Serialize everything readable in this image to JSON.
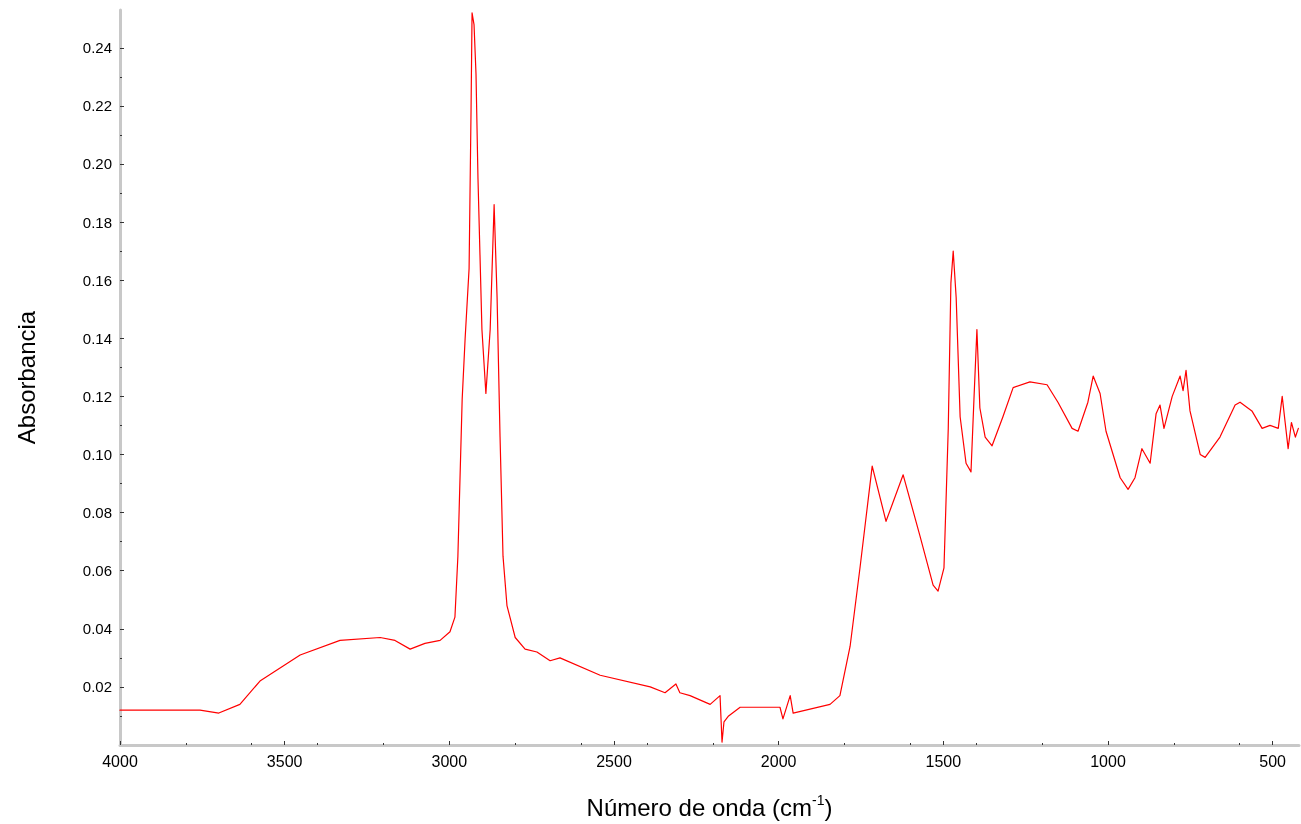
{
  "chart_data": {
    "type": "line",
    "xlabel": "Número de onda (cm$^{-1}$)",
    "ylabel": "Absorbancia",
    "xlim": [
      4000,
      420
    ],
    "xticks": [
      4000,
      3500,
      3000,
      2500,
      2000,
      1500,
      1000,
      500
    ],
    "ylim": [
      0,
      0.253
    ],
    "yticks": [
      0.02,
      0.04,
      0.06,
      0.08,
      {
        "value": 0.1,
        "label": "0.10"
      },
      0.12,
      0.14,
      0.16,
      0.18,
      {
        "value": 0.2,
        "label": "0.20"
      },
      0.22,
      0.24
    ],
    "grid": false,
    "marker": "none",
    "line_style": "solid",
    "series": [
      {
        "color": "#ff0000",
        "x": [
          4000,
          3757,
          3700,
          3636,
          3575,
          3453,
          3332,
          3210,
          3165,
          3119,
          3074,
          3028,
          2998,
          2983,
          2974,
          2961,
          2952,
          2940,
          2934,
          2931,
          2925,
          2919,
          2913,
          2901,
          2889,
          2876,
          2864,
          2855,
          2846,
          2837,
          2825,
          2800,
          2770,
          2734,
          2694,
          2664,
          2542,
          2390,
          2345,
          2312,
          2300,
          2269,
          2208,
          2178,
          2172,
          2166,
          2152,
          2117,
          1996,
          1987,
          1965,
          1956,
          1844,
          1814,
          1783,
          1753,
          1716,
          1674,
          1622,
          1571,
          1531,
          1516,
          1498,
          1485,
          1477,
          1470,
          1461,
          1449,
          1431,
          1416,
          1407,
          1398,
          1389,
          1373,
          1352,
          1319,
          1288,
          1237,
          1185,
          1152,
          1109,
          1091,
          1061,
          1045,
          1024,
          1006,
          963,
          939,
          918,
          897,
          872,
          854,
          842,
          830,
          805,
          781,
          772,
          763,
          751,
          720,
          705,
          660,
          614,
          599,
          563,
          532,
          508,
          483,
          471,
          462,
          453,
          443,
          431,
          422
        ],
        "values": [
          0.012,
          0.012,
          0.011,
          0.014,
          0.022,
          0.031,
          0.036,
          0.037,
          0.036,
          0.033,
          0.035,
          0.036,
          0.039,
          0.044,
          0.065,
          0.119,
          0.14,
          0.164,
          0.219,
          0.252,
          0.248,
          0.231,
          0.195,
          0.143,
          0.121,
          0.143,
          0.186,
          0.154,
          0.106,
          0.065,
          0.048,
          0.037,
          0.033,
          0.032,
          0.029,
          0.03,
          0.024,
          0.02,
          0.018,
          0.021,
          0.018,
          0.017,
          0.014,
          0.017,
          0.001,
          0.008,
          0.01,
          0.013,
          0.013,
          0.009,
          0.017,
          0.011,
          0.014,
          0.017,
          0.034,
          0.061,
          0.096,
          0.077,
          0.093,
          0.072,
          0.055,
          0.053,
          0.061,
          0.109,
          0.159,
          0.17,
          0.154,
          0.113,
          0.097,
          0.094,
          0.119,
          0.143,
          0.116,
          0.106,
          0.103,
          0.113,
          0.123,
          0.125,
          0.124,
          0.118,
          0.109,
          0.108,
          0.118,
          0.127,
          0.121,
          0.108,
          0.092,
          0.088,
          0.092,
          0.102,
          0.097,
          0.114,
          0.117,
          0.109,
          0.12,
          0.127,
          0.122,
          0.129,
          0.115,
          0.1,
          0.099,
          0.106,
          0.117,
          0.118,
          0.115,
          0.109,
          0.11,
          0.109,
          0.12,
          0.111,
          0.102,
          0.111,
          0.106,
          0.109
        ]
      }
    ]
  }
}
